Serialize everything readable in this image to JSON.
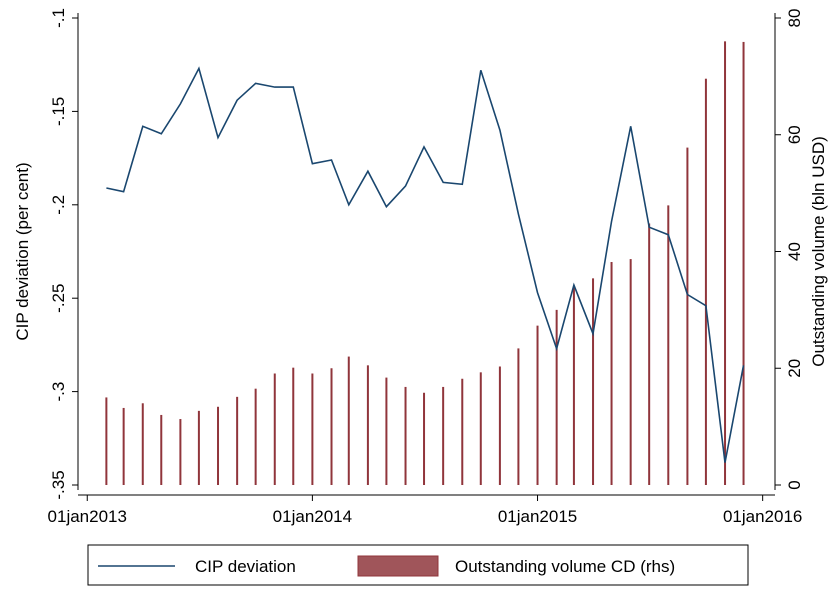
{
  "chart_data": {
    "type": "line-bar",
    "y_label": "CIP deviation (per cent)",
    "y2_label": "Outstanding volume (bln USD)",
    "x": [
      "2013-02-01",
      "2013-03-01",
      "2013-04-01",
      "2013-05-01",
      "2013-06-01",
      "2013-07-01",
      "2013-08-01",
      "2013-09-01",
      "2013-10-01",
      "2013-11-01",
      "2013-12-01",
      "2014-01-01",
      "2014-02-01",
      "2014-03-01",
      "2014-04-01",
      "2014-05-01",
      "2014-06-01",
      "2014-07-01",
      "2014-08-01",
      "2014-09-01",
      "2014-10-01",
      "2014-11-01",
      "2014-12-01",
      "2015-01-01",
      "2015-02-01",
      "2015-03-01",
      "2015-04-01",
      "2015-05-01",
      "2015-06-01",
      "2015-07-01",
      "2015-08-01",
      "2015-09-01",
      "2015-10-01",
      "2015-11-01",
      "2015-12-01"
    ],
    "series": [
      {
        "name": "CIP deviation",
        "type": "line",
        "color": "#1a476f",
        "values": [
          -0.191,
          -0.193,
          -0.158,
          -0.162,
          -0.146,
          -0.127,
          -0.164,
          -0.144,
          -0.135,
          -0.137,
          -0.137,
          -0.178,
          -0.176,
          -0.2,
          -0.182,
          -0.201,
          -0.19,
          -0.169,
          -0.188,
          -0.189,
          -0.128,
          -0.16,
          -0.205,
          -0.247,
          -0.277,
          -0.243,
          -0.269,
          -0.209,
          -0.158,
          -0.212,
          -0.216,
          -0.248,
          -0.254,
          -0.338,
          -0.286
        ]
      },
      {
        "name": "Outstanding volume CD (rhs)",
        "type": "bar",
        "axis": "y2",
        "color": "#90353b",
        "values": [
          15,
          13.2,
          14,
          12,
          11.3,
          12.7,
          13.4,
          15.1,
          16.5,
          19.1,
          20.1,
          19.1,
          20,
          22,
          20.5,
          18.4,
          16.8,
          15.8,
          16.8,
          18.2,
          19.3,
          20.3,
          23.4,
          27.3,
          30,
          33.9,
          35.4,
          38.2,
          38.7,
          44.8,
          47.9,
          57.8,
          69.6,
          76,
          75.9
        ]
      }
    ],
    "xlim": [
      "2012-12-17",
      "2016-01-21"
    ],
    "xticks": [
      {
        "value": "2013-01-01",
        "label": "01jan2013"
      },
      {
        "value": "2014-01-01",
        "label": "01jan2014"
      },
      {
        "value": "2015-01-01",
        "label": "01jan2015"
      },
      {
        "value": "2016-01-01",
        "label": "01jan2016"
      }
    ],
    "ylim": [
      -0.35,
      -0.1
    ],
    "yticks": [
      {
        "value": -0.35,
        "label": "-.35"
      },
      {
        "value": -0.3,
        "label": "-.3"
      },
      {
        "value": -0.25,
        "label": "-.25"
      },
      {
        "value": -0.2,
        "label": "-.2"
      },
      {
        "value": -0.15,
        "label": "-.15"
      },
      {
        "value": -0.1,
        "label": "-.1"
      }
    ],
    "y2lim": [
      0,
      80
    ],
    "y2ticks": [
      0,
      20,
      40,
      60,
      80
    ]
  }
}
